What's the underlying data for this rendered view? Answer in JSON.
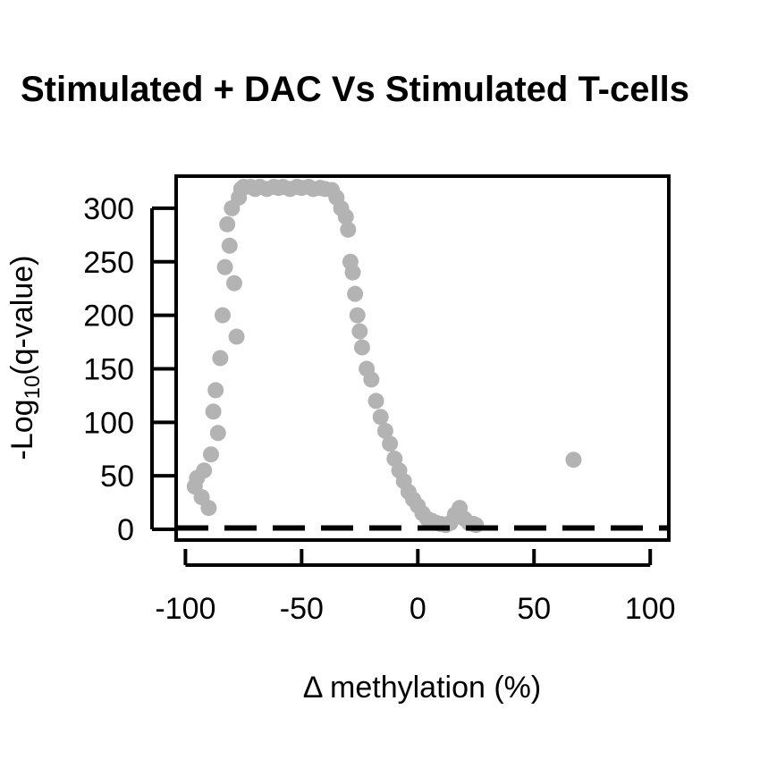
{
  "chart_data": {
    "type": "scatter",
    "title": "Stimulated + DAC Vs Stimulated T-cells",
    "xlabel": "Δ methylation (%)",
    "ylabel_main": "-Log",
    "ylabel_sub": "10",
    "ylabel_rest": "(q-value)",
    "xlim": [
      -104,
      108
    ],
    "ylim": [
      -10,
      330
    ],
    "x_ticks": [
      -100,
      -50,
      0,
      50,
      100
    ],
    "x_tick_labels": [
      "-100",
      "-50",
      "0",
      "50",
      "100"
    ],
    "y_ticks": [
      0,
      50,
      100,
      150,
      200,
      250,
      300
    ],
    "y_tick_labels": [
      "0",
      "50",
      "100",
      "150",
      "200",
      "250",
      "300"
    ],
    "threshold_line_y": 1.3,
    "point_color": "#b3b3b3",
    "grid": false,
    "legend": "none",
    "points": [
      [
        -96,
        40
      ],
      [
        -95,
        48
      ],
      [
        -93,
        30
      ],
      [
        -92,
        55
      ],
      [
        -90,
        20
      ],
      [
        -89,
        70
      ],
      [
        -88,
        110
      ],
      [
        -87,
        130
      ],
      [
        -86,
        90
      ],
      [
        -85,
        160
      ],
      [
        -84,
        200
      ],
      [
        -83,
        245
      ],
      [
        -82,
        285
      ],
      [
        -81,
        265
      ],
      [
        -80,
        300
      ],
      [
        -79,
        230
      ],
      [
        -78,
        180
      ],
      [
        -77,
        310
      ],
      [
        -76,
        318
      ],
      [
        -75,
        320
      ],
      [
        -72,
        320
      ],
      [
        -70,
        318
      ],
      [
        -68,
        320
      ],
      [
        -65,
        318
      ],
      [
        -62,
        320
      ],
      [
        -60,
        319
      ],
      [
        -58,
        320
      ],
      [
        -55,
        318
      ],
      [
        -52,
        320
      ],
      [
        -50,
        319
      ],
      [
        -47,
        320
      ],
      [
        -45,
        318
      ],
      [
        -42,
        319
      ],
      [
        -40,
        318
      ],
      [
        -37,
        317
      ],
      [
        -35,
        310
      ],
      [
        -33,
        300
      ],
      [
        -31,
        292
      ],
      [
        -30,
        280
      ],
      [
        -29,
        250
      ],
      [
        -28,
        240
      ],
      [
        -27,
        220
      ],
      [
        -26,
        200
      ],
      [
        -25,
        185
      ],
      [
        -24,
        170
      ],
      [
        -22,
        150
      ],
      [
        -20,
        140
      ],
      [
        -18,
        120
      ],
      [
        -16,
        105
      ],
      [
        -14,
        92
      ],
      [
        -12,
        80
      ],
      [
        -10,
        66
      ],
      [
        -8,
        55
      ],
      [
        -6,
        45
      ],
      [
        -4,
        35
      ],
      [
        -2,
        28
      ],
      [
        0,
        22
      ],
      [
        2,
        15
      ],
      [
        4,
        10
      ],
      [
        6,
        8
      ],
      [
        8,
        6
      ],
      [
        10,
        5
      ],
      [
        12,
        4
      ],
      [
        14,
        6
      ],
      [
        16,
        14
      ],
      [
        18,
        20
      ],
      [
        20,
        10
      ],
      [
        22,
        6
      ],
      [
        24,
        5
      ],
      [
        25,
        4
      ],
      [
        67,
        65
      ]
    ]
  }
}
